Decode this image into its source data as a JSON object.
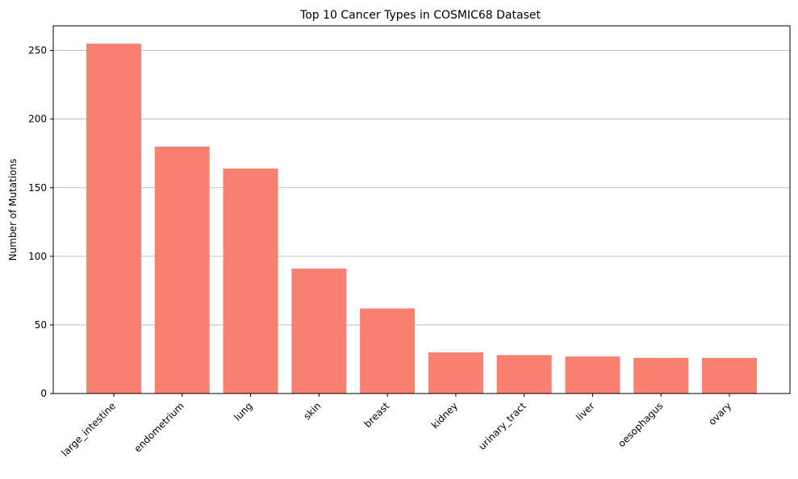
{
  "chart_data": {
    "type": "bar",
    "title": "Top 10 Cancer Types in COSMIC68 Dataset",
    "xlabel": "",
    "ylabel": "Number of Mutations",
    "categories": [
      "large_intestine",
      "endometrium",
      "lung",
      "skin",
      "breast",
      "kidney",
      "urinary_tract",
      "liver",
      "oesophagus",
      "ovary"
    ],
    "values": [
      255,
      180,
      164,
      91,
      62,
      30,
      28,
      27,
      26,
      26
    ],
    "ylim": [
      0,
      268
    ],
    "yticks": [
      0,
      50,
      100,
      150,
      200,
      250
    ],
    "grid": "y",
    "bar_color": "#fa8072"
  }
}
